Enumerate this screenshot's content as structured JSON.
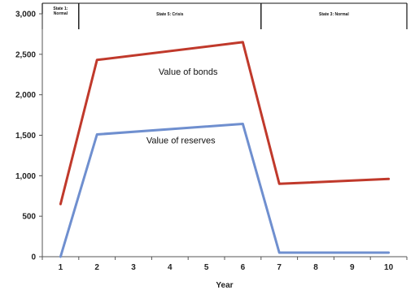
{
  "chart_data": {
    "type": "line",
    "xlabel": "Year",
    "ylabel": "",
    "x": [
      1,
      2,
      3,
      4,
      5,
      6,
      7,
      8,
      9,
      10
    ],
    "ylim": [
      0,
      3000
    ],
    "yticks": [
      "0",
      "500",
      "1,000",
      "1,500",
      "2,000",
      "2,500",
      "3,000"
    ],
    "grid": false,
    "series": [
      {
        "name": "Value of bonds",
        "color": "#c0392b",
        "points": [
          [
            1,
            650
          ],
          [
            2,
            2430
          ],
          [
            6,
            2650
          ],
          [
            7,
            900
          ],
          [
            10,
            960
          ]
        ]
      },
      {
        "name": "Value of reserves",
        "color": "#6f8fcf",
        "points": [
          [
            1,
            0
          ],
          [
            2,
            1510
          ],
          [
            6,
            1640
          ],
          [
            7,
            50
          ],
          [
            10,
            50
          ]
        ]
      }
    ],
    "states": [
      {
        "label": "State 1: Normal",
        "x_start": 0.5,
        "x_end": 1.5
      },
      {
        "label": "State 5: Crisis",
        "x_start": 1.5,
        "x_end": 6.5
      },
      {
        "label": "State 3: Normal",
        "x_start": 6.5,
        "x_end": 10.5
      }
    ]
  }
}
